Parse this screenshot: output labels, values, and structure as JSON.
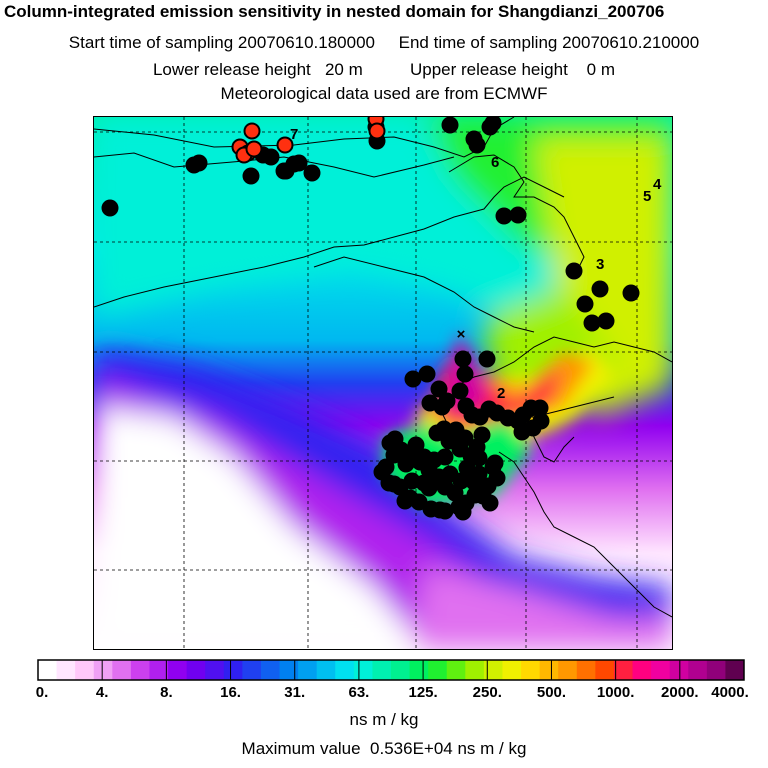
{
  "header": {
    "title": "Column-integrated emission sensitivity in nested domain for Shangdianzi_200706",
    "sampling": "Start time of sampling 20070610.180000     End time of sampling 20070610.210000",
    "release": "Lower release height   20 m          Upper release height    0 m",
    "meteo": "Meteorological data used are from ECMWF"
  },
  "map": {
    "point_labels": [
      "7",
      "6",
      "5",
      "4",
      "3",
      "2"
    ],
    "source_marker": "×"
  },
  "colorbar": {
    "ticks": [
      "0.",
      "4.",
      "8.",
      "16.",
      "31.",
      "63.",
      "125.",
      "250.",
      "500.",
      "1000.",
      "2000.",
      "4000."
    ],
    "colors": [
      "#ffffff",
      "#ffe6ff",
      "#ffc8fa",
      "#f0a0f5",
      "#e070f0",
      "#cc40ee",
      "#b020ee",
      "#9000f0",
      "#7000f0",
      "#5010f0",
      "#3020f0",
      "#2040f0",
      "#1060f0",
      "#0080f0",
      "#00a0f0",
      "#00c0f0",
      "#00e0f0",
      "#00f0d8",
      "#00f0b0",
      "#00f090",
      "#00f060",
      "#20f030",
      "#60f010",
      "#a0f000",
      "#d0f000",
      "#f0f000",
      "#ffd800",
      "#ffb800",
      "#ff9800",
      "#ff7000",
      "#ff4800",
      "#ff2040",
      "#ff0080",
      "#f000a0",
      "#d000a0",
      "#b00090",
      "#90007a",
      "#600050"
    ],
    "units": "ns m / kg"
  },
  "max_value": "Maximum value  0.536E+04 ns m / kg"
}
